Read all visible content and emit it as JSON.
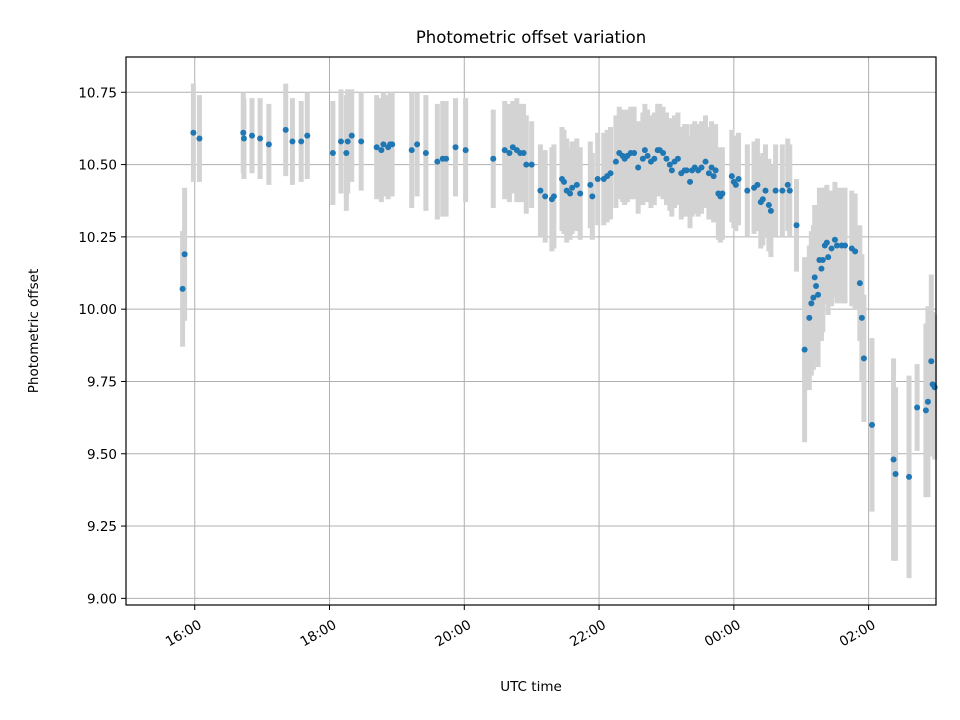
{
  "chart_data": {
    "type": "scatter",
    "title": "Photometric offset variation",
    "xlabel": "UTC time",
    "ylabel": "Photometric offset",
    "x_unit": "hours (UTC, continuing past midnight)",
    "x_tick_values": [
      16,
      18,
      20,
      22,
      24,
      26
    ],
    "x_tick_labels": [
      "16:00",
      "18:00",
      "20:00",
      "22:00",
      "00:00",
      "02:00"
    ],
    "y_tick_values": [
      9.0,
      9.25,
      9.5,
      9.75,
      10.0,
      10.25,
      10.5,
      10.75
    ],
    "y_tick_labels": [
      "9.00",
      "9.25",
      "9.50",
      "9.75",
      "10.00",
      "10.25",
      "10.50",
      "10.75"
    ],
    "xlim": [
      14.98,
      27.0
    ],
    "ylim": [
      8.977,
      10.872
    ],
    "grid": true,
    "colors": {
      "point": "#1f77b4",
      "errorbar": "#d3d3d3",
      "grid": "#b0b0b0"
    },
    "points": [
      [
        15.82,
        10.07,
        0.2
      ],
      [
        15.85,
        10.19,
        0.23
      ],
      [
        15.98,
        10.61,
        0.17
      ],
      [
        16.07,
        10.59,
        0.15
      ],
      [
        16.72,
        10.61,
        0.14
      ],
      [
        16.73,
        10.59,
        0.14
      ],
      [
        16.85,
        10.6,
        0.13
      ],
      [
        16.97,
        10.59,
        0.14
      ],
      [
        17.1,
        10.57,
        0.14
      ],
      [
        17.35,
        10.62,
        0.16
      ],
      [
        17.45,
        10.58,
        0.15
      ],
      [
        17.58,
        10.58,
        0.14
      ],
      [
        17.67,
        10.6,
        0.15
      ],
      [
        18.05,
        10.54,
        0.18
      ],
      [
        18.17,
        10.58,
        0.18
      ],
      [
        18.25,
        10.54,
        0.2
      ],
      [
        18.27,
        10.58,
        0.18
      ],
      [
        18.33,
        10.6,
        0.16
      ],
      [
        18.47,
        10.58,
        0.17
      ],
      [
        18.7,
        10.56,
        0.18
      ],
      [
        18.77,
        10.55,
        0.18
      ],
      [
        18.8,
        10.57,
        0.18
      ],
      [
        18.87,
        10.56,
        0.18
      ],
      [
        18.9,
        10.57,
        0.18
      ],
      [
        18.93,
        10.57,
        0.18
      ],
      [
        19.22,
        10.55,
        0.2
      ],
      [
        19.3,
        10.57,
        0.18
      ],
      [
        19.43,
        10.54,
        0.2
      ],
      [
        19.6,
        10.51,
        0.2
      ],
      [
        19.68,
        10.52,
        0.2
      ],
      [
        19.73,
        10.52,
        0.2
      ],
      [
        19.87,
        10.56,
        0.17
      ],
      [
        20.02,
        10.55,
        0.18
      ],
      [
        20.43,
        10.52,
        0.17
      ],
      [
        20.6,
        10.55,
        0.17
      ],
      [
        20.67,
        10.54,
        0.17
      ],
      [
        20.72,
        10.56,
        0.16
      ],
      [
        20.78,
        10.55,
        0.18
      ],
      [
        20.83,
        10.54,
        0.17
      ],
      [
        20.88,
        10.54,
        0.17
      ],
      [
        20.92,
        10.5,
        0.17
      ],
      [
        21.0,
        10.5,
        0.15
      ],
      [
        21.13,
        10.41,
        0.16
      ],
      [
        21.2,
        10.39,
        0.16
      ],
      [
        21.3,
        10.38,
        0.18
      ],
      [
        21.33,
        10.39,
        0.18
      ],
      [
        21.45,
        10.45,
        0.18
      ],
      [
        21.48,
        10.44,
        0.18
      ],
      [
        21.52,
        10.41,
        0.18
      ],
      [
        21.57,
        10.4,
        0.16
      ],
      [
        21.6,
        10.42,
        0.16
      ],
      [
        21.67,
        10.43,
        0.16
      ],
      [
        21.72,
        10.4,
        0.16
      ],
      [
        21.87,
        10.43,
        0.15
      ],
      [
        21.9,
        10.39,
        0.15
      ],
      [
        21.98,
        10.45,
        0.16
      ],
      [
        22.07,
        10.45,
        0.16
      ],
      [
        22.12,
        10.46,
        0.16
      ],
      [
        22.17,
        10.47,
        0.16
      ],
      [
        22.25,
        10.51,
        0.16
      ],
      [
        22.3,
        10.54,
        0.16
      ],
      [
        22.35,
        10.53,
        0.16
      ],
      [
        22.38,
        10.52,
        0.16
      ],
      [
        22.42,
        10.53,
        0.16
      ],
      [
        22.47,
        10.54,
        0.16
      ],
      [
        22.52,
        10.54,
        0.16
      ],
      [
        22.58,
        10.49,
        0.16
      ],
      [
        22.65,
        10.52,
        0.16
      ],
      [
        22.68,
        10.55,
        0.16
      ],
      [
        22.72,
        10.53,
        0.16
      ],
      [
        22.77,
        10.51,
        0.16
      ],
      [
        22.82,
        10.52,
        0.16
      ],
      [
        22.87,
        10.55,
        0.16
      ],
      [
        22.9,
        10.55,
        0.16
      ],
      [
        22.95,
        10.54,
        0.16
      ],
      [
        23.0,
        10.52,
        0.16
      ],
      [
        23.05,
        10.5,
        0.16
      ],
      [
        23.08,
        10.48,
        0.16
      ],
      [
        23.12,
        10.51,
        0.16
      ],
      [
        23.17,
        10.52,
        0.16
      ],
      [
        23.22,
        10.47,
        0.16
      ],
      [
        23.27,
        10.48,
        0.16
      ],
      [
        23.3,
        10.48,
        0.16
      ],
      [
        23.35,
        10.44,
        0.16
      ],
      [
        23.38,
        10.48,
        0.16
      ],
      [
        23.42,
        10.49,
        0.16
      ],
      [
        23.47,
        10.48,
        0.16
      ],
      [
        23.52,
        10.49,
        0.16
      ],
      [
        23.58,
        10.51,
        0.16
      ],
      [
        23.63,
        10.47,
        0.16
      ],
      [
        23.67,
        10.49,
        0.16
      ],
      [
        23.7,
        10.46,
        0.16
      ],
      [
        23.73,
        10.48,
        0.16
      ],
      [
        23.77,
        10.4,
        0.16
      ],
      [
        23.8,
        10.39,
        0.16
      ],
      [
        23.83,
        10.4,
        0.16
      ],
      [
        23.97,
        10.46,
        0.16
      ],
      [
        24.0,
        10.44,
        0.16
      ],
      [
        24.03,
        10.43,
        0.16
      ],
      [
        24.07,
        10.45,
        0.16
      ],
      [
        24.2,
        10.41,
        0.16
      ],
      [
        24.3,
        10.42,
        0.16
      ],
      [
        24.35,
        10.43,
        0.16
      ],
      [
        24.4,
        10.37,
        0.16
      ],
      [
        24.43,
        10.38,
        0.16
      ],
      [
        24.47,
        10.41,
        0.16
      ],
      [
        24.52,
        10.36,
        0.16
      ],
      [
        24.55,
        10.34,
        0.16
      ],
      [
        24.62,
        10.41,
        0.16
      ],
      [
        24.72,
        10.41,
        0.16
      ],
      [
        24.8,
        10.43,
        0.16
      ],
      [
        24.83,
        10.41,
        0.16
      ],
      [
        24.93,
        10.29,
        0.16
      ],
      [
        25.05,
        9.86,
        0.32
      ],
      [
        25.12,
        9.97,
        0.25
      ],
      [
        25.15,
        10.02,
        0.25
      ],
      [
        25.18,
        10.04,
        0.25
      ],
      [
        25.2,
        10.11,
        0.25
      ],
      [
        25.22,
        10.08,
        0.25
      ],
      [
        25.25,
        10.05,
        0.25
      ],
      [
        25.27,
        10.17,
        0.25
      ],
      [
        25.3,
        10.14,
        0.25
      ],
      [
        25.32,
        10.17,
        0.25
      ],
      [
        25.35,
        10.22,
        0.2
      ],
      [
        25.38,
        10.23,
        0.2
      ],
      [
        25.4,
        10.18,
        0.2
      ],
      [
        25.45,
        10.21,
        0.2
      ],
      [
        25.5,
        10.24,
        0.2
      ],
      [
        25.53,
        10.22,
        0.2
      ],
      [
        25.6,
        10.22,
        0.2
      ],
      [
        25.65,
        10.22,
        0.2
      ],
      [
        25.75,
        10.21,
        0.2
      ],
      [
        25.8,
        10.2,
        0.2
      ],
      [
        25.87,
        10.09,
        0.2
      ],
      [
        25.9,
        9.97,
        0.22
      ],
      [
        25.93,
        9.83,
        0.22
      ],
      [
        26.05,
        9.6,
        0.3
      ],
      [
        26.37,
        9.48,
        0.35
      ],
      [
        26.4,
        9.43,
        0.3
      ],
      [
        26.6,
        9.42,
        0.35
      ],
      [
        26.72,
        9.66,
        0.15
      ],
      [
        26.85,
        9.65,
        0.3
      ],
      [
        26.88,
        9.68,
        0.33
      ],
      [
        26.93,
        9.82,
        0.3
      ],
      [
        26.95,
        9.74,
        0.25
      ],
      [
        26.98,
        9.73,
        0.25
      ]
    ]
  }
}
